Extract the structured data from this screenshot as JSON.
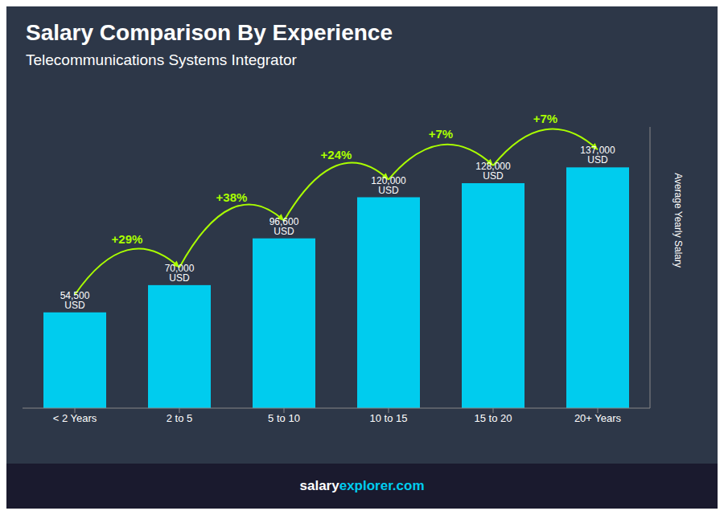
{
  "chart_data": {
    "type": "bar",
    "title": "Salary Comparison By Experience",
    "subtitle": "Telecommunications Systems Integrator",
    "categories": [
      "< 2 Years",
      "2 to 5",
      "5 to 10",
      "10 to 15",
      "15 to 20",
      "20+ Years"
    ],
    "values": [
      54500,
      70000,
      96600,
      120000,
      128000,
      137000
    ],
    "value_labels": [
      "54,500 USD",
      "70,000 USD",
      "96,600 USD",
      "120,000 USD",
      "128,000 USD",
      "137,000 USD"
    ],
    "data_labels": true,
    "color": "#00CCEE",
    "ylabel": "Average Yearly Salary",
    "ylim": [
      0,
      160000
    ],
    "tick_labels": "x",
    "grid": false,
    "annotations": [
      {
        "text": "+29%",
        "from": "< 2 Years",
        "to": "2 to 5",
        "color": "#AAFF00"
      },
      {
        "text": "+38%",
        "from": "2 to 5",
        "to": "5 to 10",
        "color": "#AAFF00"
      },
      {
        "text": "+24%",
        "from": "5 to 10",
        "to": "10 to 15",
        "color": "#AAFF00"
      },
      {
        "text": "+7%",
        "from": "10 to 15",
        "to": "15 to 20",
        "color": "#AAFF00"
      },
      {
        "text": "+7%",
        "from": "15 to 20",
        "to": "20+ Years",
        "color": "#AAFF00"
      }
    ],
    "footer": [
      "salary",
      "explorer.com"
    ]
  }
}
